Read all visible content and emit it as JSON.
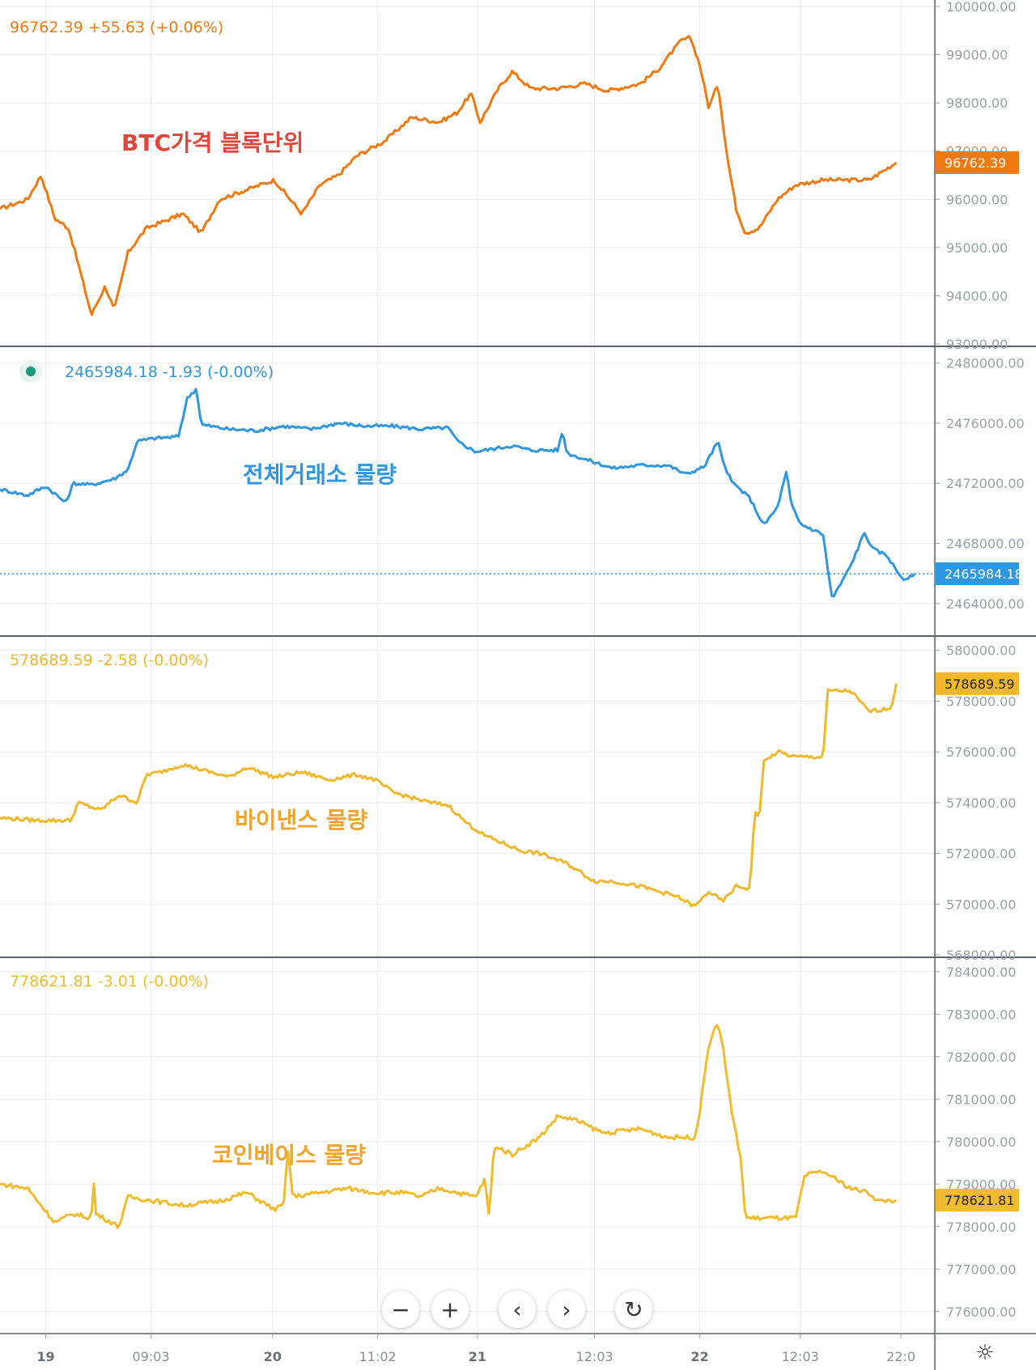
{
  "chart_data": [
    {
      "type": "line",
      "annotation": "BTC가격 블록단위",
      "legend": {
        "value": "96762.39",
        "change": "+55.63",
        "pct": "(+0.06%)"
      },
      "last_value_tag": "96762.39",
      "ylim": [
        93000,
        100000
      ],
      "yticks": [
        "100000.00",
        "99000.00",
        "98000.00",
        "97000.00",
        "96000.00",
        "95000.00",
        "94000.00",
        "93000.00"
      ],
      "color": "#f07a12",
      "anchors": [
        [
          0,
          95800
        ],
        [
          0.03,
          96000
        ],
        [
          0.045,
          96500
        ],
        [
          0.06,
          95600
        ],
        [
          0.075,
          95400
        ],
        [
          0.085,
          94700
        ],
        [
          0.1,
          93600
        ],
        [
          0.115,
          94200
        ],
        [
          0.125,
          93700
        ],
        [
          0.14,
          94900
        ],
        [
          0.16,
          95400
        ],
        [
          0.2,
          95700
        ],
        [
          0.22,
          95300
        ],
        [
          0.24,
          96000
        ],
        [
          0.27,
          96200
        ],
        [
          0.3,
          96400
        ],
        [
          0.33,
          95700
        ],
        [
          0.35,
          96300
        ],
        [
          0.37,
          96500
        ],
        [
          0.39,
          96900
        ],
        [
          0.42,
          97200
        ],
        [
          0.45,
          97700
        ],
        [
          0.48,
          97600
        ],
        [
          0.5,
          97800
        ],
        [
          0.515,
          98200
        ],
        [
          0.525,
          97600
        ],
        [
          0.545,
          98300
        ],
        [
          0.56,
          98650
        ],
        [
          0.58,
          98300
        ],
        [
          0.61,
          98300
        ],
        [
          0.64,
          98400
        ],
        [
          0.665,
          98250
        ],
        [
          0.7,
          98400
        ],
        [
          0.72,
          98700
        ],
        [
          0.745,
          99300
        ],
        [
          0.755,
          99350
        ],
        [
          0.765,
          98800
        ],
        [
          0.775,
          97900
        ],
        [
          0.785,
          98400
        ],
        [
          0.795,
          96900
        ],
        [
          0.805,
          95800
        ],
        [
          0.815,
          95300
        ],
        [
          0.83,
          95400
        ],
        [
          0.85,
          96000
        ],
        [
          0.87,
          96300
        ],
        [
          0.9,
          96400
        ],
        [
          0.95,
          96400
        ],
        [
          0.98,
          96762
        ]
      ]
    },
    {
      "type": "line",
      "annotation": "전체거래소 물량",
      "legend": {
        "value": "2465984.18",
        "change": "-1.93",
        "pct": "(-0.00%)"
      },
      "last_value_tag": "2465984.18",
      "ylim": [
        2462000,
        2481000
      ],
      "yticks": [
        "2480000.00",
        "2476000.00",
        "2472000.00",
        "2468000.00",
        "2464000.00"
      ],
      "color": "#2f96e0",
      "anchors": [
        [
          0,
          2471600
        ],
        [
          0.03,
          2471200
        ],
        [
          0.05,
          2471800
        ],
        [
          0.072,
          2470700
        ],
        [
          0.08,
          2472000
        ],
        [
          0.1,
          2471900
        ],
        [
          0.125,
          2472300
        ],
        [
          0.14,
          2472900
        ],
        [
          0.15,
          2474800
        ],
        [
          0.17,
          2475000
        ],
        [
          0.195,
          2475100
        ],
        [
          0.205,
          2477700
        ],
        [
          0.215,
          2478300
        ],
        [
          0.22,
          2475900
        ],
        [
          0.25,
          2475600
        ],
        [
          0.28,
          2475500
        ],
        [
          0.31,
          2475800
        ],
        [
          0.34,
          2475600
        ],
        [
          0.37,
          2476000
        ],
        [
          0.4,
          2475800
        ],
        [
          0.43,
          2475800
        ],
        [
          0.46,
          2475600
        ],
        [
          0.49,
          2475700
        ],
        [
          0.5,
          2474800
        ],
        [
          0.52,
          2474100
        ],
        [
          0.55,
          2474400
        ],
        [
          0.56,
          2474500
        ],
        [
          0.58,
          2474200
        ],
        [
          0.61,
          2474200
        ],
        [
          0.615,
          2475500
        ],
        [
          0.62,
          2474000
        ],
        [
          0.65,
          2473400
        ],
        [
          0.67,
          2473000
        ],
        [
          0.7,
          2473200
        ],
        [
          0.73,
          2473200
        ],
        [
          0.75,
          2472600
        ],
        [
          0.77,
          2473100
        ],
        [
          0.785,
          2474800
        ],
        [
          0.79,
          2473500
        ],
        [
          0.8,
          2472100
        ],
        [
          0.82,
          2471000
        ],
        [
          0.835,
          2469200
        ],
        [
          0.85,
          2470400
        ],
        [
          0.86,
          2472800
        ],
        [
          0.865,
          2470600
        ],
        [
          0.875,
          2469300
        ],
        [
          0.9,
          2468600
        ],
        [
          0.905,
          2466300
        ],
        [
          0.91,
          2464300
        ],
        [
          0.93,
          2466500
        ],
        [
          0.945,
          2468700
        ],
        [
          0.955,
          2467600
        ],
        [
          0.97,
          2467200
        ],
        [
          0.98,
          2466200
        ],
        [
          0.99,
          2465500
        ],
        [
          1.0,
          2465984
        ]
      ]
    },
    {
      "type": "line",
      "annotation": "바이낸스 물량",
      "legend": {
        "value": "578689.59",
        "change": "-2.58",
        "pct": "(-0.00%)"
      },
      "last_value_tag": "578689.59",
      "ylim": [
        568000,
        580500
      ],
      "yticks": [
        "580000.00",
        "578000.00",
        "576000.00",
        "574000.00",
        "572000.00",
        "570000.00",
        "568000.00"
      ],
      "color": "#f0b82a",
      "anchors": [
        [
          0,
          573400
        ],
        [
          0.04,
          573300
        ],
        [
          0.078,
          573300
        ],
        [
          0.085,
          574000
        ],
        [
          0.11,
          573700
        ],
        [
          0.13,
          574300
        ],
        [
          0.15,
          574000
        ],
        [
          0.16,
          575100
        ],
        [
          0.175,
          575200
        ],
        [
          0.2,
          575500
        ],
        [
          0.22,
          575300
        ],
        [
          0.25,
          575000
        ],
        [
          0.27,
          575400
        ],
        [
          0.3,
          575000
        ],
        [
          0.33,
          575200
        ],
        [
          0.36,
          574900
        ],
        [
          0.39,
          575100
        ],
        [
          0.41,
          574900
        ],
        [
          0.43,
          574400
        ],
        [
          0.47,
          574000
        ],
        [
          0.49,
          573900
        ],
        [
          0.51,
          573200
        ],
        [
          0.53,
          572700
        ],
        [
          0.55,
          572400
        ],
        [
          0.57,
          572100
        ],
        [
          0.59,
          572000
        ],
        [
          0.62,
          571600
        ],
        [
          0.65,
          570900
        ],
        [
          0.67,
          570900
        ],
        [
          0.7,
          570700
        ],
        [
          0.72,
          570500
        ],
        [
          0.74,
          570300
        ],
        [
          0.76,
          569900
        ],
        [
          0.775,
          570500
        ],
        [
          0.79,
          570100
        ],
        [
          0.805,
          570700
        ],
        [
          0.82,
          570600
        ],
        [
          0.825,
          573600
        ],
        [
          0.83,
          573400
        ],
        [
          0.835,
          575600
        ],
        [
          0.85,
          576000
        ],
        [
          0.87,
          575800
        ],
        [
          0.9,
          575800
        ],
        [
          0.905,
          578400
        ],
        [
          0.93,
          578400
        ],
        [
          0.95,
          577600
        ],
        [
          0.97,
          577700
        ],
        [
          0.975,
          577800
        ],
        [
          0.98,
          578689
        ]
      ]
    },
    {
      "type": "line",
      "annotation": "코인베이스 물량",
      "legend": {
        "value": "778621.81",
        "change": "-3.01",
        "pct": "(-0.00%)"
      },
      "last_value_tag": "778621.81",
      "ylim": [
        775500,
        784300
      ],
      "yticks": [
        "784000.00",
        "783000.00",
        "782000.00",
        "781000.00",
        "780000.00",
        "779000.00",
        "778000.00",
        "777000.00",
        "776000.00"
      ],
      "color": "#f0bb2c",
      "anchors": [
        [
          0,
          779000
        ],
        [
          0.03,
          778900
        ],
        [
          0.06,
          778100
        ],
        [
          0.08,
          778300
        ],
        [
          0.1,
          778200
        ],
        [
          0.102,
          779200
        ],
        [
          0.105,
          778300
        ],
        [
          0.13,
          778000
        ],
        [
          0.14,
          778700
        ],
        [
          0.17,
          778600
        ],
        [
          0.2,
          778500
        ],
        [
          0.24,
          778600
        ],
        [
          0.27,
          778800
        ],
        [
          0.3,
          778400
        ],
        [
          0.31,
          778500
        ],
        [
          0.315,
          779800
        ],
        [
          0.32,
          778700
        ],
        [
          0.35,
          778800
        ],
        [
          0.38,
          778900
        ],
        [
          0.41,
          778800
        ],
        [
          0.44,
          778800
        ],
        [
          0.46,
          778700
        ],
        [
          0.48,
          778900
        ],
        [
          0.52,
          778700
        ],
        [
          0.53,
          779100
        ],
        [
          0.535,
          778200
        ],
        [
          0.54,
          779900
        ],
        [
          0.56,
          779700
        ],
        [
          0.59,
          780100
        ],
        [
          0.61,
          780600
        ],
        [
          0.63,
          780500
        ],
        [
          0.66,
          780200
        ],
        [
          0.7,
          780300
        ],
        [
          0.73,
          780100
        ],
        [
          0.76,
          780100
        ],
        [
          0.765,
          780700
        ],
        [
          0.775,
          782300
        ],
        [
          0.785,
          782800
        ],
        [
          0.79,
          782300
        ],
        [
          0.8,
          780700
        ],
        [
          0.81,
          779600
        ],
        [
          0.815,
          778200
        ],
        [
          0.84,
          778200
        ],
        [
          0.87,
          778200
        ],
        [
          0.88,
          779200
        ],
        [
          0.9,
          779300
        ],
        [
          0.93,
          778900
        ],
        [
          0.95,
          778800
        ],
        [
          0.96,
          778600
        ],
        [
          0.98,
          778621
        ]
      ]
    }
  ],
  "x_axis": {
    "ticks": [
      {
        "label": "19",
        "frac": 0.05,
        "day": true
      },
      {
        "label": "09:03",
        "frac": 0.165,
        "day": false
      },
      {
        "label": "20",
        "frac": 0.298,
        "day": true
      },
      {
        "label": "11:02",
        "frac": 0.413,
        "day": false
      },
      {
        "label": "21",
        "frac": 0.522,
        "day": true
      },
      {
        "label": "12:03",
        "frac": 0.65,
        "day": false
      },
      {
        "label": "22",
        "frac": 0.765,
        "day": true
      },
      {
        "label": "12:03",
        "frac": 0.875,
        "day": false
      },
      {
        "label": "22:0",
        "frac": 0.985,
        "day": false
      }
    ]
  },
  "controls": {
    "zoom_out": "−",
    "zoom_in": "+",
    "scroll_left": "‹",
    "scroll_right": "›",
    "reset": "↻",
    "settings": "☼"
  }
}
